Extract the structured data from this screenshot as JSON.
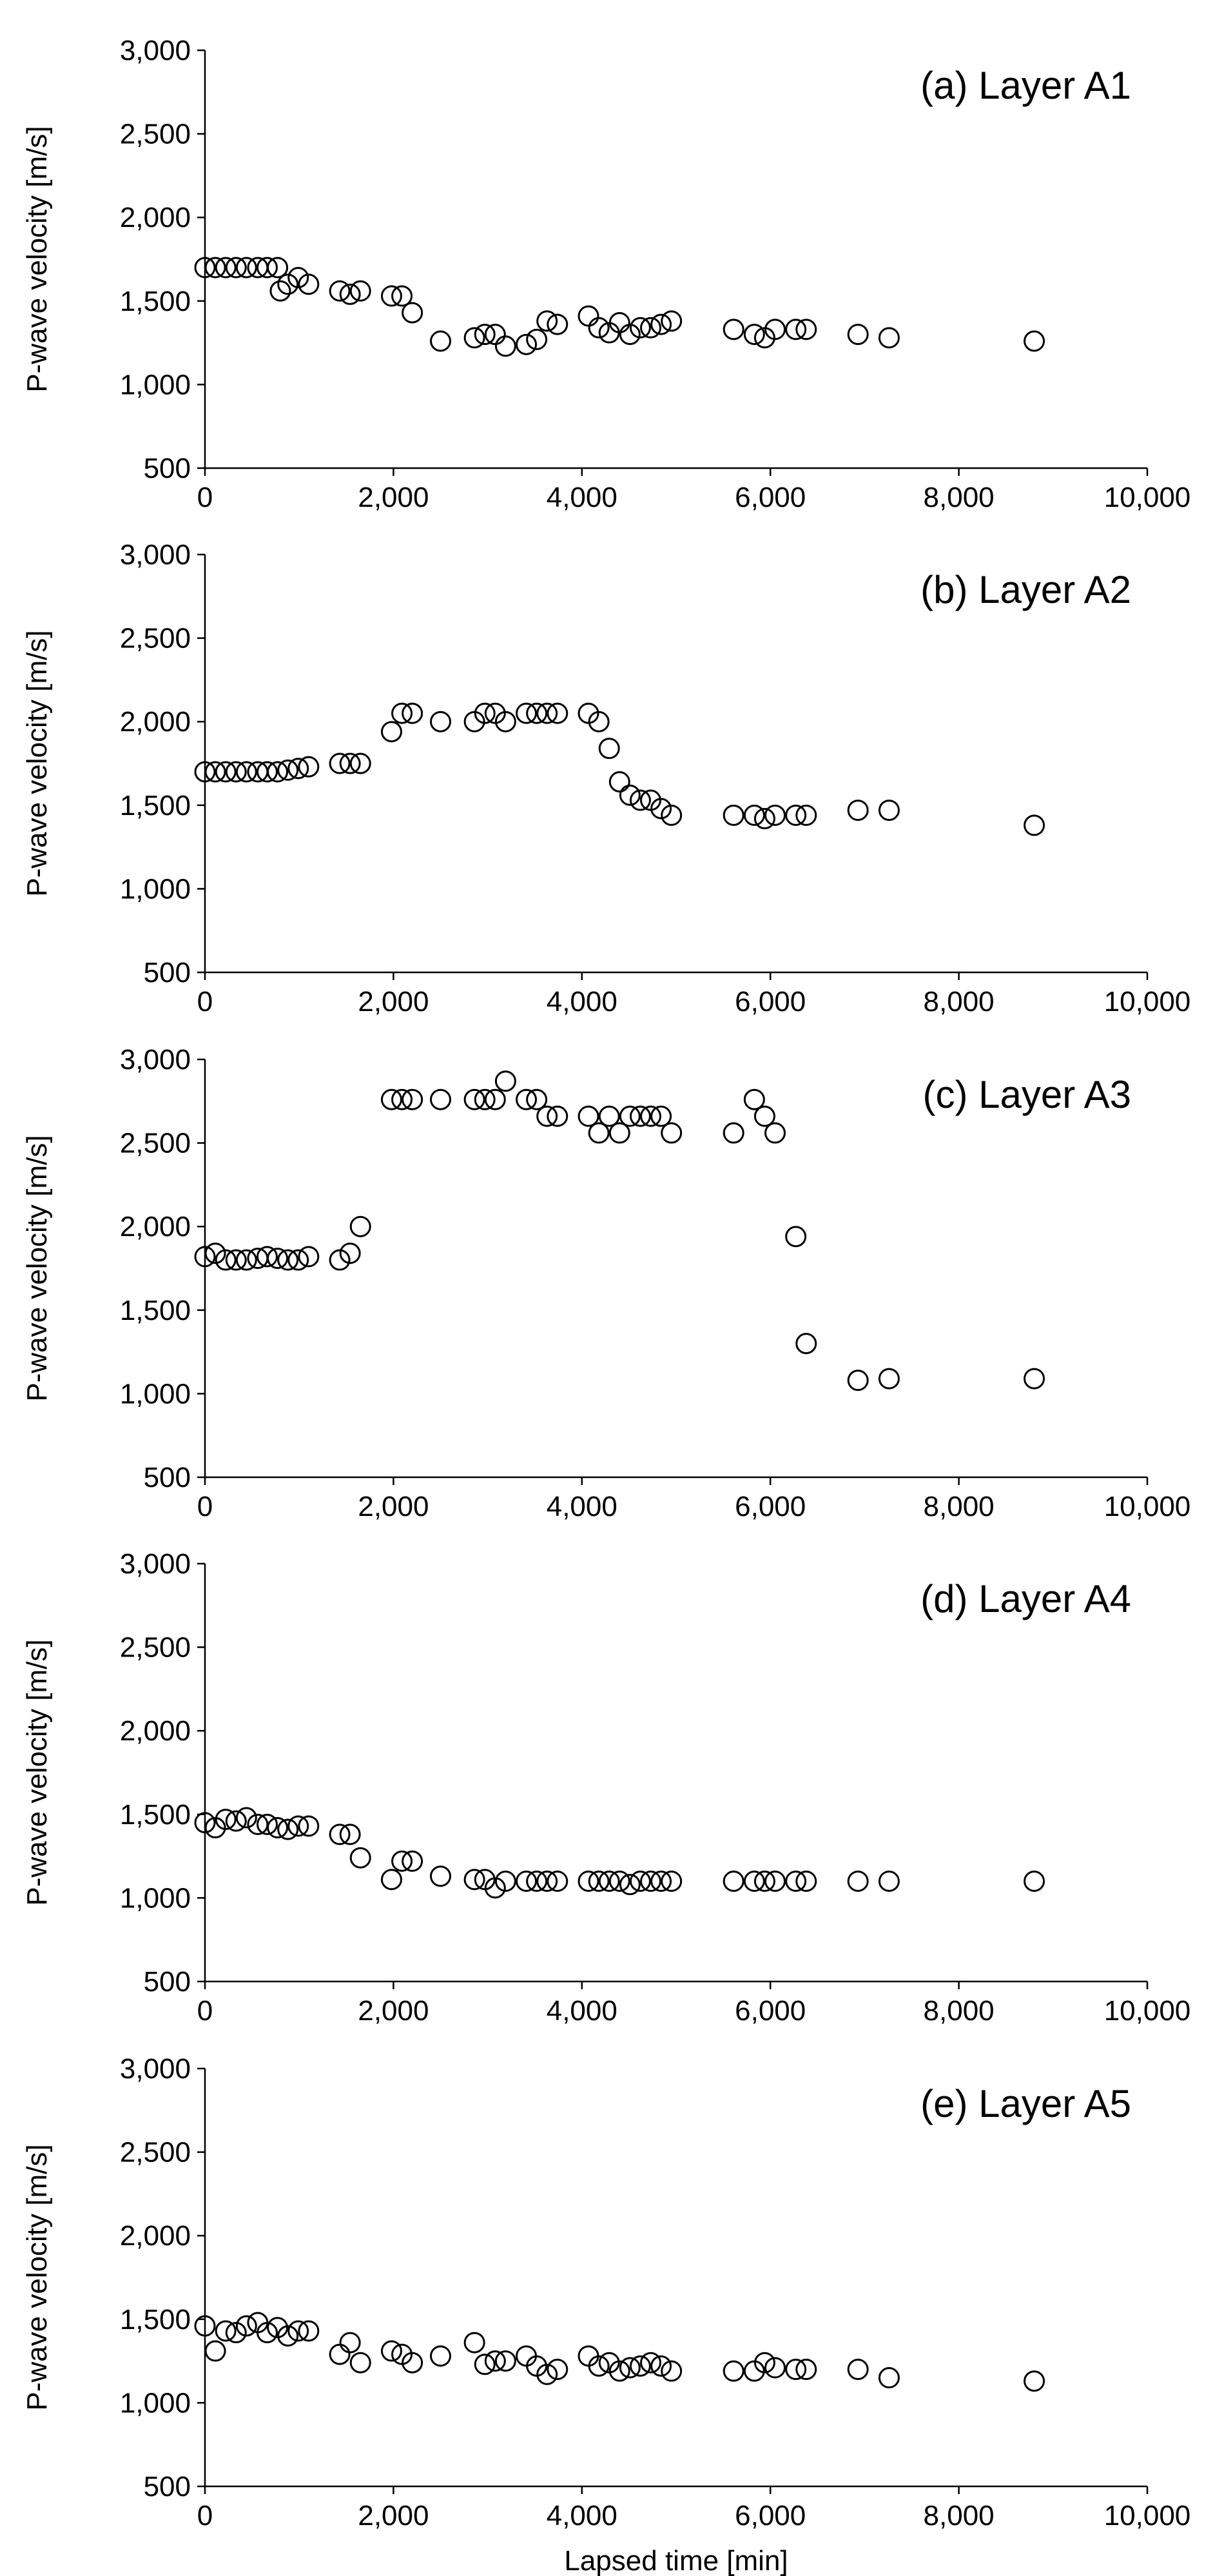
{
  "chart_data": [
    {
      "type": "scatter",
      "title": "(a) Layer A1",
      "ylabel": "P-wave velocity [m/s]",
      "xlabel": "",
      "xlim": [
        0,
        10000
      ],
      "ylim": [
        500,
        3000
      ],
      "xticks": [
        "0",
        "2,000",
        "4,000",
        "6,000",
        "8,000",
        "10,000"
      ],
      "yticks": [
        "500",
        "1,000",
        "1,500",
        "2,000",
        "2,500",
        "3,000"
      ],
      "grid": false,
      "x": [
        0,
        110,
        220,
        330,
        440,
        560,
        660,
        770,
        800,
        880,
        990,
        1100,
        1430,
        1540,
        1650,
        1980,
        2090,
        2200,
        2500,
        2860,
        2970,
        3080,
        3190,
        3410,
        3520,
        3630,
        3740,
        4070,
        4180,
        4290,
        4400,
        4510,
        4620,
        4730,
        4840,
        4950,
        5610,
        5830,
        5940,
        6050,
        6270,
        6380,
        6930,
        7260,
        8800
      ],
      "y": [
        1700,
        1700,
        1700,
        1700,
        1700,
        1700,
        1700,
        1700,
        1560,
        1600,
        1640,
        1600,
        1560,
        1540,
        1560,
        1530,
        1530,
        1430,
        1260,
        1280,
        1300,
        1300,
        1230,
        1240,
        1270,
        1380,
        1360,
        1410,
        1340,
        1310,
        1370,
        1300,
        1340,
        1340,
        1360,
        1380,
        1330,
        1300,
        1280,
        1330,
        1330,
        1330,
        1300,
        1280,
        1260
      ]
    },
    {
      "type": "scatter",
      "title": "(b) Layer A2",
      "ylabel": "P-wave velocity [m/s]",
      "xlabel": "",
      "xlim": [
        0,
        10000
      ],
      "ylim": [
        500,
        3000
      ],
      "xticks": [
        "0",
        "2,000",
        "4,000",
        "6,000",
        "8,000",
        "10,000"
      ],
      "yticks": [
        "500",
        "1,000",
        "1,500",
        "2,000",
        "2,500",
        "3,000"
      ],
      "grid": false,
      "x": [
        0,
        110,
        220,
        330,
        440,
        560,
        660,
        770,
        880,
        990,
        1100,
        1430,
        1540,
        1650,
        1980,
        2090,
        2200,
        2500,
        2860,
        2970,
        3080,
        3190,
        3410,
        3520,
        3630,
        3740,
        4070,
        4180,
        4290,
        4400,
        4510,
        4620,
        4730,
        4840,
        4950,
        5610,
        5830,
        5940,
        6050,
        6270,
        6380,
        6930,
        7260,
        8800
      ],
      "y": [
        1700,
        1700,
        1700,
        1700,
        1700,
        1700,
        1700,
        1700,
        1710,
        1720,
        1730,
        1750,
        1750,
        1750,
        1940,
        2050,
        2050,
        2000,
        2000,
        2050,
        2050,
        2000,
        2050,
        2050,
        2050,
        2050,
        2050,
        2000,
        1840,
        1640,
        1560,
        1530,
        1530,
        1480,
        1440,
        1440,
        1440,
        1420,
        1440,
        1440,
        1440,
        1470,
        1470,
        1380
      ]
    },
    {
      "type": "scatter",
      "title": "(c) Layer A3",
      "ylabel": "P-wave velocity [m/s]",
      "xlabel": "",
      "xlim": [
        0,
        10000
      ],
      "ylim": [
        500,
        3000
      ],
      "xticks": [
        "0",
        "2,000",
        "4,000",
        "6,000",
        "8,000",
        "10,000"
      ],
      "yticks": [
        "500",
        "1,000",
        "1,500",
        "2,000",
        "2,500",
        "3,000"
      ],
      "grid": false,
      "x": [
        0,
        110,
        220,
        330,
        440,
        560,
        660,
        770,
        880,
        990,
        1100,
        1430,
        1540,
        1650,
        1980,
        2090,
        2200,
        2500,
        2860,
        2970,
        3080,
        3190,
        3410,
        3520,
        3630,
        3740,
        4070,
        4180,
        4290,
        4400,
        4510,
        4620,
        4730,
        4840,
        4950,
        5610,
        5830,
        5940,
        6050,
        6270,
        6380,
        6930,
        7260,
        8800
      ],
      "y": [
        1820,
        1840,
        1800,
        1800,
        1800,
        1810,
        1820,
        1810,
        1800,
        1800,
        1820,
        1800,
        1840,
        2000,
        2760,
        2760,
        2760,
        2760,
        2760,
        2760,
        2760,
        2870,
        2760,
        2760,
        2660,
        2660,
        2660,
        2560,
        2660,
        2560,
        2660,
        2660,
        2660,
        2660,
        2560,
        2560,
        2760,
        2660,
        2560,
        1940,
        1300,
        1080,
        1090,
        1090
      ]
    },
    {
      "type": "scatter",
      "title": "(d) Layer A4",
      "ylabel": "P-wave velocity [m/s]",
      "xlabel": "",
      "xlim": [
        0,
        10000
      ],
      "ylim": [
        500,
        3000
      ],
      "xticks": [
        "0",
        "2,000",
        "4,000",
        "6,000",
        "8,000",
        "10,000"
      ],
      "yticks": [
        "500",
        "1,000",
        "1,500",
        "2,000",
        "2,500",
        "3,000"
      ],
      "grid": false,
      "x": [
        0,
        110,
        220,
        330,
        440,
        560,
        660,
        770,
        880,
        990,
        1100,
        1430,
        1540,
        1650,
        1980,
        2090,
        2200,
        2500,
        2860,
        2970,
        3080,
        3190,
        3410,
        3520,
        3630,
        3740,
        4070,
        4180,
        4290,
        4400,
        4510,
        4620,
        4730,
        4840,
        4950,
        5610,
        5830,
        5940,
        6050,
        6270,
        6380,
        6930,
        7260,
        8800
      ],
      "y": [
        1450,
        1420,
        1470,
        1460,
        1480,
        1440,
        1440,
        1420,
        1410,
        1430,
        1430,
        1380,
        1380,
        1240,
        1110,
        1220,
        1220,
        1130,
        1110,
        1110,
        1060,
        1100,
        1100,
        1100,
        1100,
        1100,
        1100,
        1100,
        1100,
        1100,
        1080,
        1100,
        1100,
        1100,
        1100,
        1100,
        1100,
        1100,
        1100,
        1100,
        1100,
        1100,
        1100,
        1100
      ]
    },
    {
      "type": "scatter",
      "title": "(e) Layer A5",
      "ylabel": "P-wave velocity [m/s]",
      "xlabel": "Lapsed time [min]",
      "xlim": [
        0,
        10000
      ],
      "ylim": [
        500,
        3000
      ],
      "xticks": [
        "0",
        "2,000",
        "4,000",
        "6,000",
        "8,000",
        "10,000"
      ],
      "yticks": [
        "500",
        "1,000",
        "1,500",
        "2,000",
        "2,500",
        "3,000"
      ],
      "grid": false,
      "x": [
        0,
        110,
        220,
        330,
        440,
        560,
        660,
        770,
        880,
        990,
        1100,
        1430,
        1540,
        1650,
        1980,
        2090,
        2200,
        2500,
        2860,
        2970,
        3080,
        3190,
        3410,
        3520,
        3630,
        3740,
        4070,
        4180,
        4290,
        4400,
        4510,
        4620,
        4730,
        4840,
        4950,
        5610,
        5830,
        5940,
        6050,
        6270,
        6380,
        6930,
        7260,
        8800
      ],
      "y": [
        1460,
        1310,
        1430,
        1420,
        1460,
        1480,
        1420,
        1450,
        1400,
        1430,
        1430,
        1290,
        1360,
        1240,
        1310,
        1290,
        1240,
        1280,
        1360,
        1230,
        1250,
        1250,
        1280,
        1220,
        1170,
        1200,
        1280,
        1220,
        1240,
        1190,
        1210,
        1220,
        1240,
        1220,
        1190,
        1190,
        1190,
        1240,
        1210,
        1200,
        1200,
        1200,
        1150,
        1130
      ]
    }
  ]
}
